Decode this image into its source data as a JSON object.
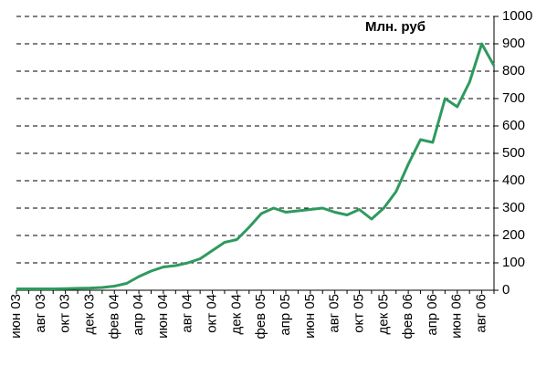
{
  "chart_data": {
    "type": "line",
    "ylabel": "Млн. руб",
    "categories": [
      "июн 03",
      null,
      "авг 03",
      null,
      "окт 03",
      null,
      "дек 03",
      null,
      "фев 04",
      null,
      "апр 04",
      null,
      "июн 04",
      null,
      "авг 04",
      null,
      "окт 04",
      null,
      "дек 04",
      null,
      "фев 05",
      null,
      "апр 05",
      null,
      "июн 05",
      null,
      "авг 05",
      null,
      "окт 05",
      null,
      "дек 05",
      null,
      "фев 06",
      null,
      "апр 06",
      null,
      "июн 06",
      null,
      "авг 06",
      null
    ],
    "series": [
      {
        "name": null,
        "color": "#2e9a5e",
        "values": [
          5,
          5,
          5,
          5,
          6,
          7,
          8,
          10,
          15,
          25,
          50,
          70,
          85,
          90,
          100,
          115,
          145,
          175,
          185,
          230,
          280,
          300,
          285,
          290,
          295,
          300,
          285,
          275,
          295,
          260,
          300,
          360,
          460,
          550,
          540,
          700,
          670,
          760,
          900,
          820
        ]
      }
    ],
    "ylim": [
      0,
      1000
    ],
    "yticks": [
      0,
      100,
      200,
      300,
      400,
      500,
      600,
      700,
      800,
      900,
      1000
    ],
    "grid": true,
    "y_axis_side": "right"
  }
}
